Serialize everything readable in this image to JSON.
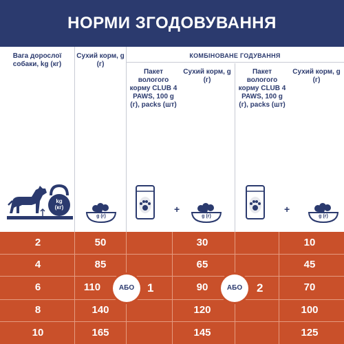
{
  "title": "НОРМИ ЗГОДОВУВАННЯ",
  "columns": {
    "weight_label": "Вага дорослої собаки, kg (кг)",
    "dry_label": "Сухий корм, g (г)",
    "combined_label": "КОМБІНОВАНЕ ГОДУВАННЯ",
    "pack1_label": "Пакет вологого корму CLUB 4 PAWS, 100 g (г), packs (шт)",
    "dry1_label": "Сухий корм, g (г)",
    "pack2_label": "Пакет вологого корму CLUB 4 PAWS, 100 g (г), packs (шт)",
    "dry2_label": "Сухий корм, g (г)"
  },
  "icons": {
    "kettlebell_label": "kg\n(кг)",
    "bowl_label": "g (г)",
    "colors": {
      "navy": "#2b3a6e",
      "orange": "#c9502a",
      "grey": "#e8e9ee"
    }
  },
  "plus_sign": "+",
  "rows": [
    {
      "weight": "2",
      "dry": "50",
      "combo1_dry": "30",
      "combo2_dry": "10"
    },
    {
      "weight": "4",
      "dry": "85",
      "combo1_dry": "65",
      "combo2_dry": "45"
    },
    {
      "weight": "6",
      "dry": "110",
      "combo1_dry": "90",
      "combo2_dry": "70"
    },
    {
      "weight": "8",
      "dry": "140",
      "combo1_dry": "120",
      "combo2_dry": "100"
    },
    {
      "weight": "10",
      "dry": "165",
      "combo1_dry": "145",
      "combo2_dry": "125"
    }
  ],
  "or_label": "АБО",
  "pack_count_1": "1",
  "pack_count_2": "2"
}
